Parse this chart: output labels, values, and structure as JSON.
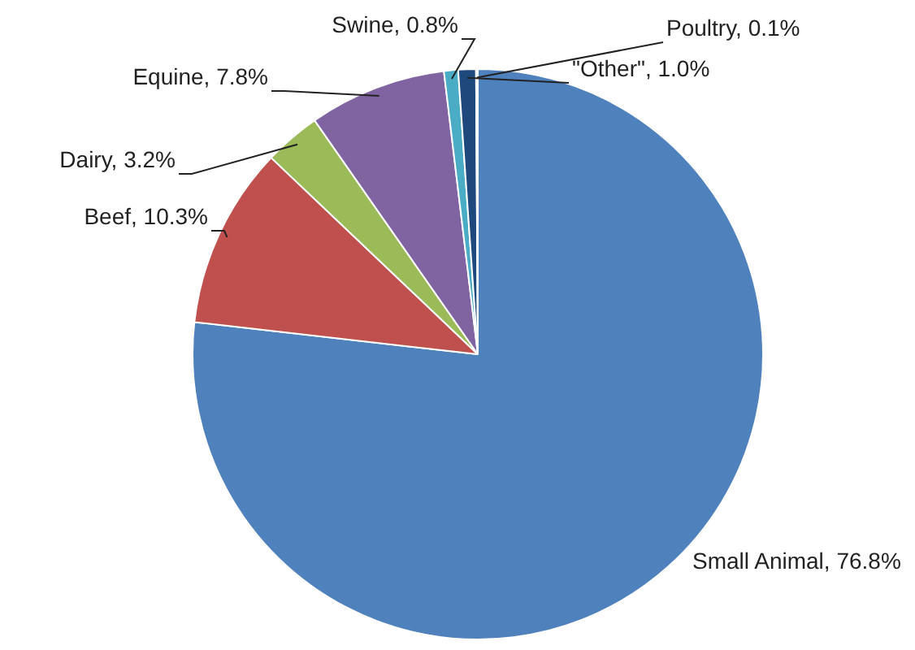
{
  "chart_data": {
    "type": "pie",
    "categories": [
      "Small Animal",
      "Beef",
      "Dairy",
      "Equine",
      "Swine",
      "\"Other\"",
      "Poultry"
    ],
    "values": [
      76.8,
      10.3,
      3.2,
      7.8,
      0.8,
      1.0,
      0.1
    ],
    "value_labels": [
      "76.8%",
      "10.3%",
      "3.2%",
      "7.8%",
      "0.8%",
      "1.0%",
      "0.1%"
    ],
    "colors": [
      "#4f81bd",
      "#c0504d",
      "#9bbb59",
      "#8064a2",
      "#4bacc6",
      "#1f497d",
      "#8db3e2"
    ],
    "legend": false
  }
}
